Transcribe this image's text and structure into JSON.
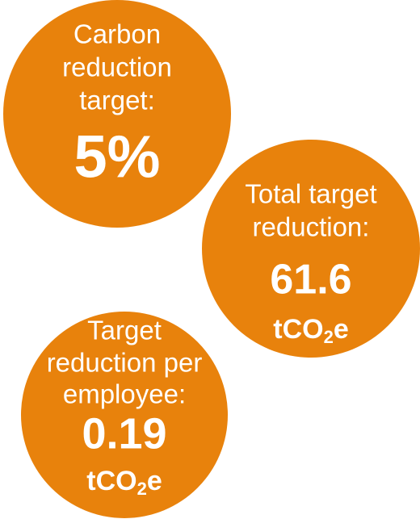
{
  "circles": [
    {
      "lines": [
        "Carbon",
        "reduction",
        "target:"
      ],
      "value": "5%"
    },
    {
      "lines": [
        "Total target",
        "reduction:"
      ],
      "value": "61.6",
      "unit": [
        "tCO",
        "2",
        "e"
      ]
    },
    {
      "lines": [
        "Target",
        "reduction per",
        "employee:"
      ],
      "value": "0.19",
      "unit": [
        "tCO",
        "2",
        "e"
      ]
    }
  ]
}
